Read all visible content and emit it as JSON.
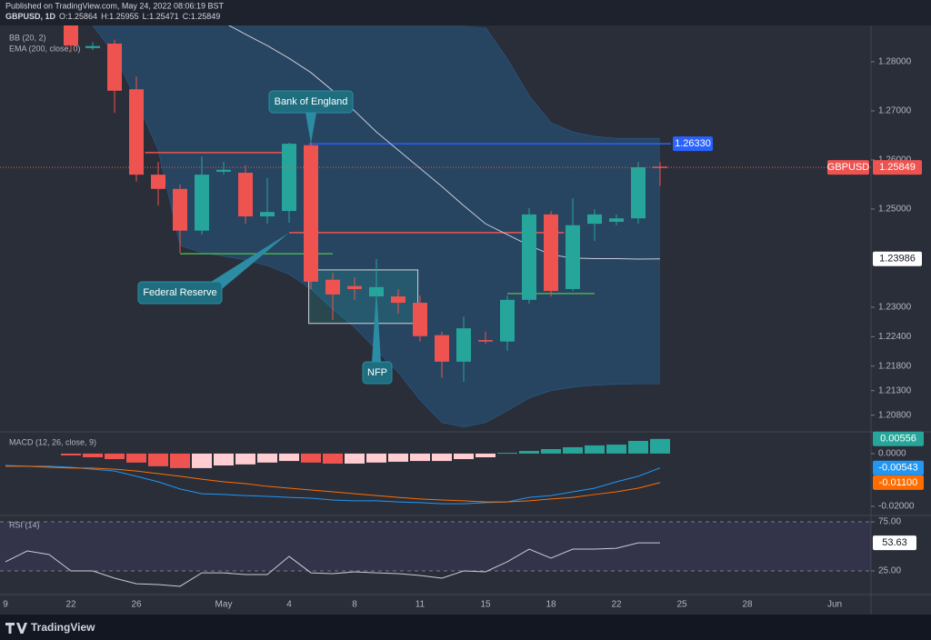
{
  "header": {
    "published": "Published on TradingView.com, May 24, 2022 08:06:19 BST",
    "symbol_line": "GBPUSD, 1D",
    "ohlc_labels": [
      "O:",
      "H:",
      "L:",
      "C:"
    ]
  },
  "footer": {
    "brand": "TradingView"
  },
  "chart_data": [
    {
      "type": "candlestick",
      "symbol_tag": "GBPUSD",
      "categories": [
        "9",
        null,
        null,
        "22",
        null,
        null,
        "26",
        null,
        null,
        null,
        "May",
        null,
        null,
        "4",
        null,
        null,
        "8",
        null,
        null,
        "11",
        null,
        null,
        "15",
        null,
        null,
        "18",
        null,
        null,
        "22",
        null,
        null,
        "25",
        null,
        null,
        "28",
        null,
        null,
        null,
        "Jun"
      ],
      "open": [
        null,
        null,
        null,
        1.2875,
        1.2828,
        1.2837,
        1.2744,
        1.257,
        1.2541,
        1.2456,
        1.2576,
        1.2574,
        1.2485,
        1.2496,
        1.263,
        1.2356,
        1.2343,
        1.2322,
        1.2322,
        1.2309,
        1.2243,
        1.2189,
        1.2233,
        1.223,
        1.2315,
        1.2489,
        1.2337,
        1.247,
        1.2474,
        1.2481,
        1.25864,
        null,
        null,
        null,
        null,
        null,
        null,
        null,
        null
      ],
      "high": [
        null,
        null,
        null,
        1.289,
        1.284,
        1.2845,
        1.277,
        1.2596,
        1.255,
        1.2607,
        1.2596,
        1.2589,
        1.2563,
        1.2635,
        1.2639,
        1.237,
        1.2361,
        1.2398,
        1.2337,
        1.2324,
        1.225,
        1.2281,
        1.225,
        1.2324,
        1.2502,
        1.2496,
        1.2522,
        1.25,
        1.2489,
        1.2596,
        1.25955,
        null,
        null,
        null,
        null,
        null,
        null,
        null,
        null
      ],
      "low": [
        null,
        null,
        null,
        1.282,
        1.2824,
        1.2696,
        1.2556,
        1.2507,
        1.2411,
        1.2448,
        1.257,
        1.247,
        1.247,
        1.2472,
        1.2337,
        1.2274,
        1.2315,
        1.2296,
        1.2287,
        1.223,
        1.2156,
        1.2148,
        1.2226,
        1.2211,
        1.2307,
        1.2322,
        1.2333,
        1.2435,
        1.2467,
        1.247,
        1.25471,
        null,
        null,
        null,
        null,
        null,
        null,
        null,
        null
      ],
      "close": [
        null,
        null,
        null,
        1.2833,
        1.2832,
        1.2741,
        1.257,
        1.2541,
        1.2456,
        1.257,
        1.258,
        1.2485,
        1.2494,
        1.2633,
        1.2352,
        1.2326,
        1.2337,
        1.2341,
        1.2309,
        1.2241,
        1.2189,
        1.2257,
        1.223,
        1.2315,
        1.2489,
        1.2333,
        1.2467,
        1.2489,
        1.2481,
        1.2585,
        1.25849,
        null,
        null,
        null,
        null,
        null,
        null,
        null,
        null
      ],
      "up_color": "#26a69a",
      "down_color": "#ef5350",
      "bb": {
        "name": "BB (20, 2)",
        "color": "#2196f3",
        "upper": [
          null,
          null,
          null,
          null,
          null,
          null,
          null,
          null,
          null,
          null,
          null,
          null,
          null,
          null,
          null,
          null,
          null,
          null,
          null,
          null,
          null,
          null,
          1.287,
          1.2806,
          1.2731,
          1.2676,
          1.2657,
          1.2648,
          1.2644,
          1.2644,
          1.2644,
          null,
          null,
          null,
          null,
          null,
          null,
          null,
          null
        ],
        "lower": [
          null,
          null,
          null,
          null,
          1.2874,
          1.2815,
          1.2722,
          1.262,
          1.2426,
          1.2411,
          1.2404,
          1.2396,
          1.2385,
          1.2367,
          1.2337,
          1.2296,
          1.2259,
          1.2213,
          1.2167,
          1.2111,
          1.2065,
          1.2056,
          1.2065,
          1.2089,
          1.2115,
          1.213,
          1.2137,
          1.2141,
          1.2143,
          1.2144,
          1.2144,
          null,
          null,
          null,
          null,
          null,
          null,
          null,
          null
        ]
      },
      "ema": {
        "name": "EMA (200, close, 0)",
        "color": "#c8ccd6",
        "values": [
          null,
          null,
          null,
          null,
          null,
          null,
          null,
          null,
          null,
          null,
          1.288,
          1.2856,
          1.2833,
          1.2807,
          1.2778,
          1.2741,
          1.27,
          1.2657,
          1.262,
          1.2583,
          1.2546,
          1.2507,
          1.247,
          1.2448,
          1.2426,
          1.2407,
          1.24,
          1.2399,
          1.2399,
          1.2398,
          1.23986,
          null,
          null,
          null,
          null,
          null,
          null,
          null,
          null
        ]
      },
      "ylim": [
        1.2048,
        1.2874
      ],
      "yticks": [
        {
          "value": 1.28,
          "label": "1.28000"
        },
        {
          "value": 1.27,
          "label": "1.27000"
        },
        {
          "value": 1.26,
          "label": "1.26000"
        },
        {
          "value": 1.25,
          "label": "1.25000"
        },
        {
          "value": 1.23,
          "label": "1.23000"
        },
        {
          "value": 1.224,
          "label": "1.22400"
        },
        {
          "value": 1.218,
          "label": "1.21800"
        },
        {
          "value": 1.213,
          "label": "1.21300"
        },
        {
          "value": 1.208,
          "label": "1.20800"
        }
      ],
      "levels": [
        {
          "color": "#ef5350",
          "value": 1.2615
        },
        {
          "color": "#2962ff",
          "value": 1.2633,
          "label": "1.26330"
        },
        {
          "color": "#ef5350",
          "value": 1.2452
        },
        {
          "color": "#4caf50",
          "value": 1.2409
        },
        {
          "color": "#4caf50",
          "value": 1.2328
        }
      ],
      "nfp_box": [
        1.2267,
        1.2376
      ],
      "annotations": [
        "Bank of England",
        "Federal Reserve",
        "NFP"
      ]
    },
    {
      "type": "macd",
      "name": "MACD (12, 26, close, 9)",
      "ylim": [
        -0.0231,
        0.0079
      ],
      "yticks": [
        {
          "value": 0,
          "label": "0.0000"
        },
        {
          "value": -0.02,
          "label": "-0.02000"
        }
      ],
      "histogram": {
        "colors": [
          "#26a69a",
          "#b2dfdb",
          "#ffcdd2",
          "#ef5350"
        ],
        "values": [
          null,
          null,
          null,
          -0.0007,
          -0.0014,
          -0.0021,
          -0.0034,
          -0.0048,
          -0.0055,
          -0.0055,
          -0.0045,
          -0.0041,
          -0.0034,
          -0.0028,
          -0.0034,
          -0.0038,
          -0.0038,
          -0.0034,
          -0.0031,
          -0.0028,
          -0.0028,
          -0.0021,
          -0.0014,
          0.0003,
          0.001,
          0.0017,
          0.0024,
          0.0031,
          0.0034,
          0.0048,
          0.00556
        ]
      },
      "macd": {
        "color": "#2196f3",
        "values": [
          -0.0045,
          -0.0048,
          -0.0048,
          -0.0052,
          -0.0059,
          -0.0066,
          -0.0086,
          -0.0107,
          -0.0134,
          -0.0152,
          -0.0155,
          -0.0159,
          -0.0162,
          -0.0166,
          -0.0169,
          -0.0176,
          -0.0179,
          -0.0179,
          -0.0183,
          -0.0186,
          -0.019,
          -0.019,
          -0.0186,
          -0.0183,
          -0.0166,
          -0.0159,
          -0.0145,
          -0.0131,
          -0.0107,
          -0.0086,
          -0.00543
        ]
      },
      "signal": {
        "color": "#ff6d00",
        "values": [
          -0.0048,
          -0.0048,
          -0.0052,
          -0.0055,
          -0.0055,
          -0.0059,
          -0.0066,
          -0.0076,
          -0.0086,
          -0.0097,
          -0.0107,
          -0.0114,
          -0.0124,
          -0.0131,
          -0.0138,
          -0.0145,
          -0.0152,
          -0.0159,
          -0.0166,
          -0.0172,
          -0.0176,
          -0.0179,
          -0.0183,
          -0.0183,
          -0.0179,
          -0.0172,
          -0.0166,
          -0.0155,
          -0.0145,
          -0.0131,
          -0.011
        ],
        "value_labels": [
          null,
          null,
          null,
          null,
          null,
          null,
          null,
          null,
          null,
          null,
          null,
          null,
          null,
          null,
          null,
          null,
          null,
          null,
          null,
          null,
          null,
          null,
          null,
          null,
          null,
          null,
          null,
          null,
          null,
          null,
          "-0.01100"
        ]
      }
    },
    {
      "type": "rsi",
      "name": "RSI (14)",
      "color": "#c8ccd6",
      "band_color": "#7e57c2",
      "ylim": [
        2.8,
        80.6
      ],
      "yticks": [
        {
          "value": 75,
          "label": "75.00"
        },
        {
          "value": 25,
          "label": "25.00"
        }
      ],
      "values": [
        34.3,
        45.4,
        41.7,
        25,
        25,
        17.6,
        12,
        11.1,
        9.3,
        23.1,
        23.1,
        21.3,
        21.3,
        39.8,
        23.1,
        22.2,
        24.1,
        23.1,
        22.2,
        20.4,
        17.6,
        25,
        24.1,
        34.3,
        47.2,
        38,
        47.2,
        47.2,
        48.1,
        53.6,
        53.63
      ]
    }
  ]
}
